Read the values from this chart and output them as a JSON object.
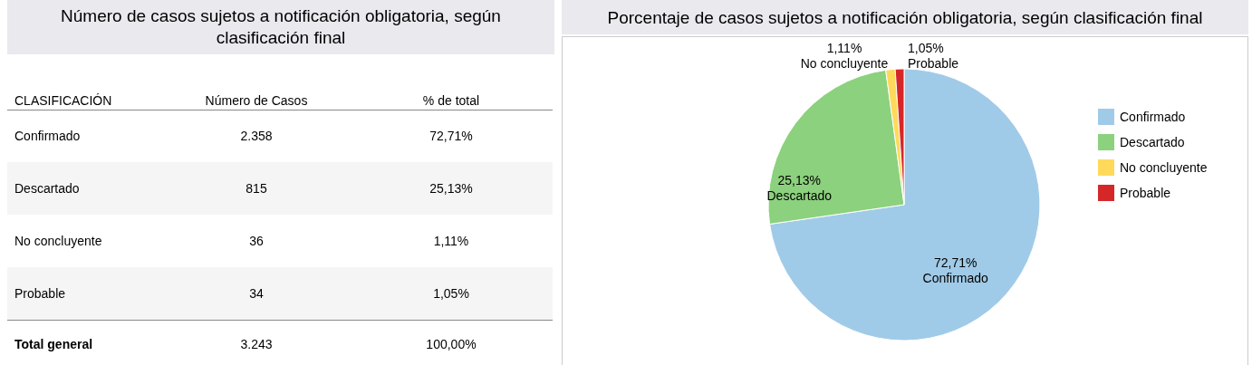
{
  "chart_data": [
    {
      "type": "other",
      "title": "Número de casos sujetos a notificación obligatoria, según clasificación final",
      "xlabel": "CLASIFICACIÓN",
      "categories": [
        "Confirmado",
        "Descartado",
        "No concluyente",
        "Probable"
      ],
      "series": [
        {
          "name": "Número de Casos",
          "values": [
            2358,
            815,
            36,
            34
          ],
          "value_labels": [
            "2.358",
            "815",
            "36",
            "34"
          ]
        },
        {
          "name": "% de total",
          "values": [
            72.71,
            25.13,
            1.11,
            1.05
          ],
          "value_labels": [
            "72,71%",
            "25,13%",
            "1,11%",
            "1,05%"
          ]
        }
      ],
      "annotations": [
        "Total general"
      ],
      "totals": [
        "3.243",
        "100,00%"
      ]
    },
    {
      "type": "pie",
      "title": "Porcentaje de casos sujetos a notificación obligatoria, según clasificación final",
      "categories": [
        "Confirmado",
        "Descartado",
        "No concluyente",
        "Probable"
      ],
      "values": [
        72.71,
        25.13,
        1.11,
        1.05
      ],
      "value_labels": [
        "72,71%",
        "25,13%",
        "1,11%",
        "1,05%"
      ],
      "colors": [
        "#a0cbe8",
        "#8cd17d",
        "#ffd95a",
        "#d62728"
      ],
      "legend": "right"
    }
  ]
}
